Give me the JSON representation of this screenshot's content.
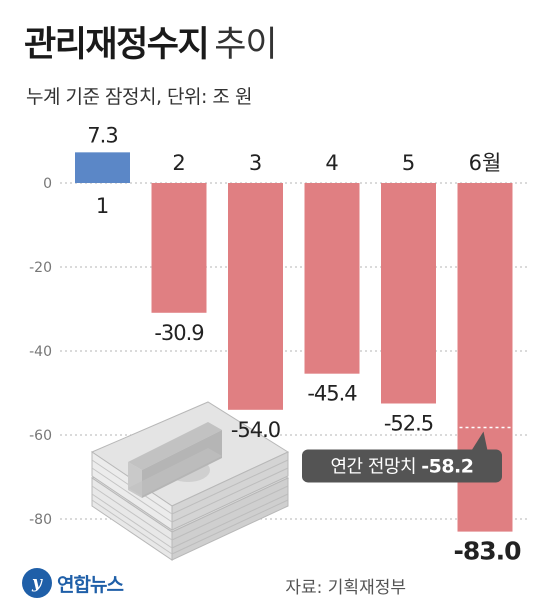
{
  "header": {
    "title_main": "관리재정수지",
    "title_sub": "추이",
    "subtitle": "누계 기준 잠정치, 단위: 조 원"
  },
  "footer": {
    "logo_text": "연합뉴스",
    "source": "자료: 기획재정부"
  },
  "colors": {
    "positive_bar": "#5b87c7",
    "negative_bar": "#e07f82",
    "grid": "#b5b5b5",
    "callout_bg": "#545454"
  },
  "chart_data": {
    "type": "bar",
    "categories": [
      "1",
      "2",
      "3",
      "4",
      "5",
      "6월"
    ],
    "values": [
      7.3,
      -30.9,
      -54.0,
      -45.4,
      -52.5,
      -83.0
    ],
    "value_labels": [
      "7.3",
      "-30.9",
      "-54.0",
      "-45.4",
      "-52.5",
      "-83.0"
    ],
    "yticks": [
      0,
      -20,
      -40,
      -60,
      -80
    ],
    "ytick_labels": [
      "0",
      "-20",
      "-40",
      "-60",
      "-80"
    ],
    "ylim": [
      -90,
      10
    ],
    "annotation": {
      "category": "6월",
      "value": -58.2,
      "label_prefix": "연간 전망치",
      "label_value": "-58.2"
    }
  }
}
